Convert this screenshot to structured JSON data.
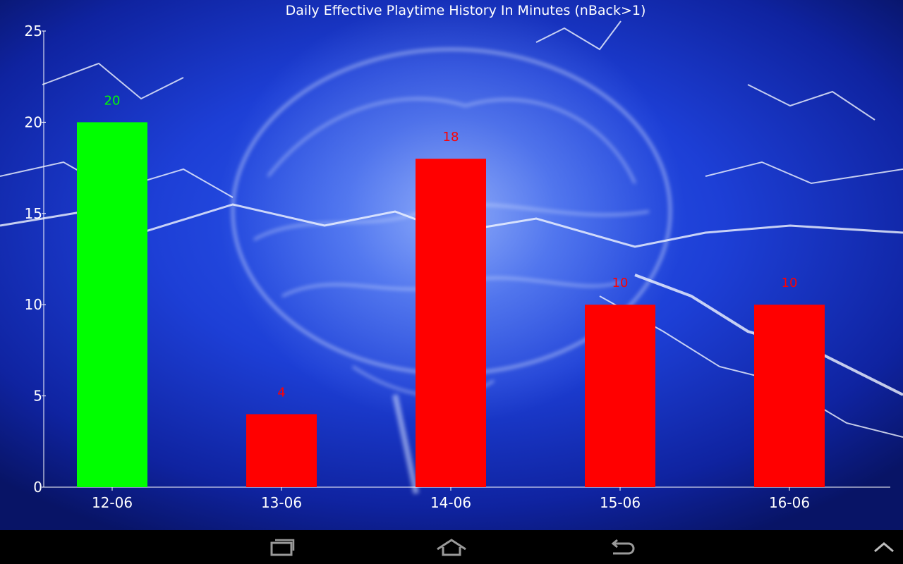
{
  "chart_data": {
    "type": "bar",
    "title": "Daily Effective Playtime History In Minutes (nBack>1)",
    "xlabel": "",
    "ylabel": "",
    "categories": [
      "12-06",
      "13-06",
      "14-06",
      "15-06",
      "16-06"
    ],
    "values": [
      20,
      4,
      18,
      10,
      10
    ],
    "bar_colors": [
      "#00ff00",
      "#ff0000",
      "#ff0000",
      "#ff0000",
      "#ff0000"
    ],
    "data_labels": [
      "20",
      "4",
      "18",
      "10",
      "10"
    ],
    "yticks": [
      "0",
      "5",
      "10",
      "15",
      "20",
      "25"
    ],
    "ylim": [
      0,
      25
    ],
    "grid": false,
    "legend": "none"
  },
  "navbar": {
    "icons": [
      "recent-apps-icon",
      "home-icon",
      "back-icon",
      "chevron-up-icon"
    ]
  }
}
